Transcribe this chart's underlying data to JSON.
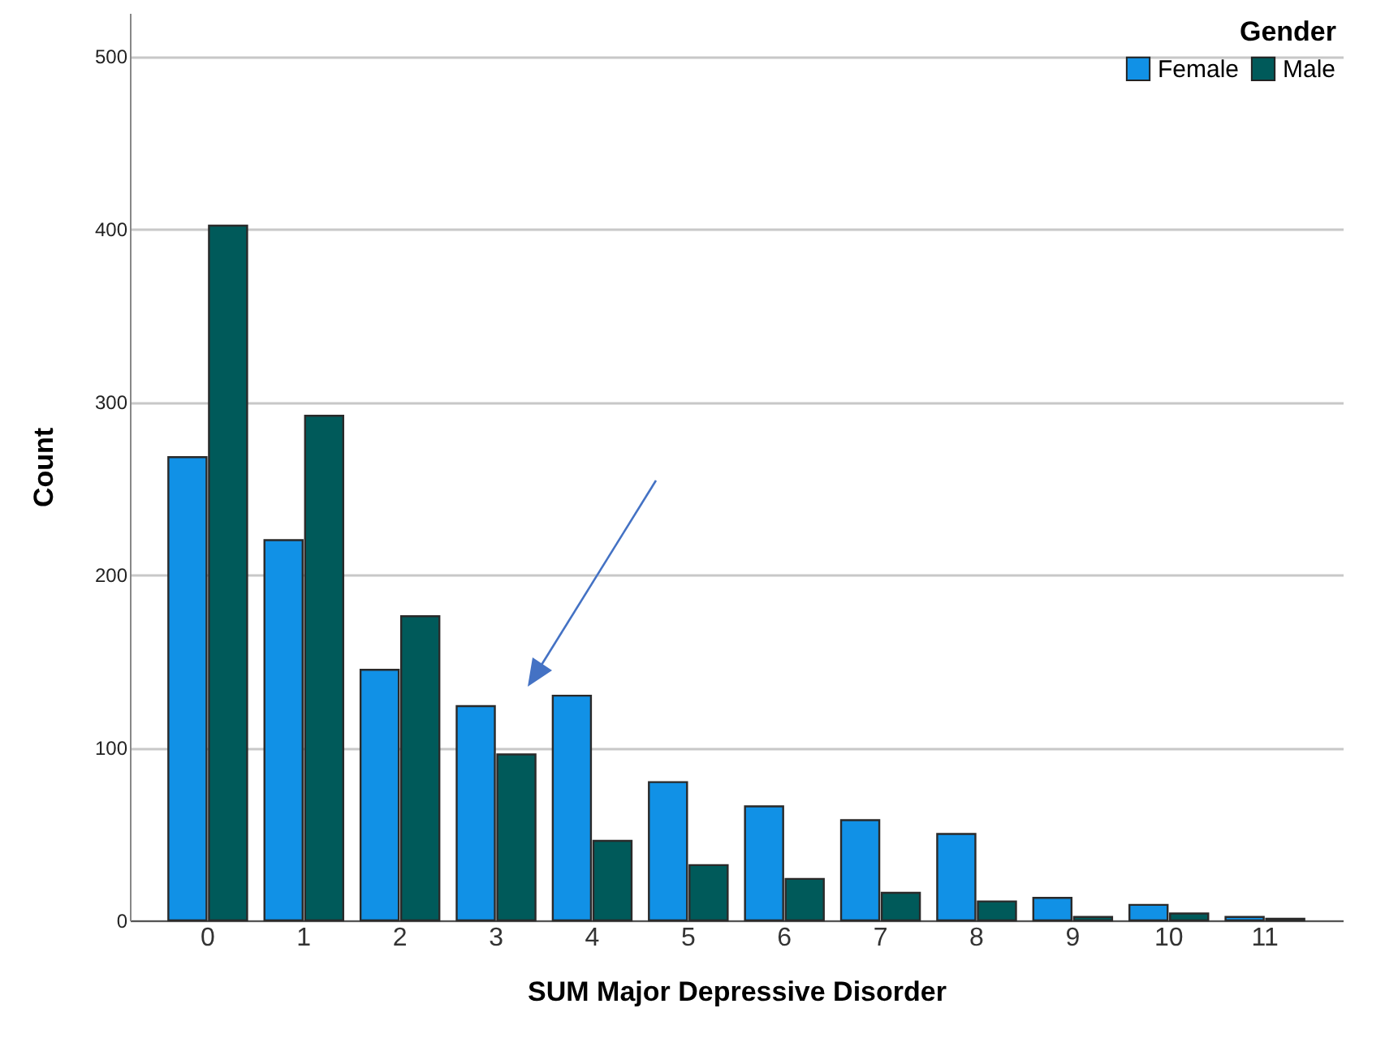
{
  "chart_data": {
    "type": "bar",
    "xlabel": "SUM Major Depressive Disorder",
    "ylabel": "Count",
    "legend_title": "Gender",
    "categories": [
      "0",
      "1",
      "2",
      "3",
      "4",
      "5",
      "6",
      "7",
      "8",
      "9",
      "10",
      "11"
    ],
    "series": [
      {
        "name": "Female",
        "color": "#1191e6",
        "values": [
          268,
          220,
          145,
          124,
          130,
          80,
          66,
          58,
          50,
          13,
          9,
          2
        ]
      },
      {
        "name": "Male",
        "color": "#005a5a",
        "values": [
          402,
          292,
          176,
          96,
          46,
          32,
          24,
          16,
          11,
          2,
          4,
          1
        ]
      }
    ],
    "ylim": [
      0,
      525
    ],
    "yticks": [
      0,
      100,
      200,
      300,
      400,
      500
    ],
    "grid": "y",
    "legend": "top right"
  }
}
